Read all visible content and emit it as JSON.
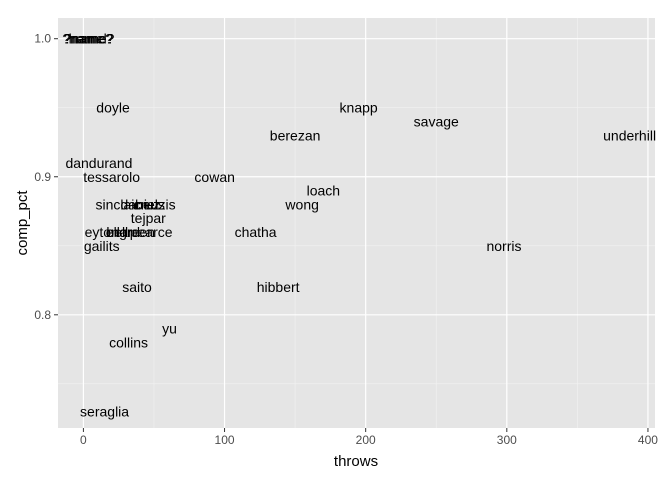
{
  "chart_data": {
    "type": "scatter",
    "title": "",
    "xlabel": "throws",
    "ylabel": "comp_pct",
    "xlim": [
      -18,
      405
    ],
    "ylim": [
      0.718,
      1.015
    ],
    "x_ticks": [
      0,
      100,
      200,
      300,
      400
    ],
    "y_ticks": [
      0.8,
      0.9,
      1.0
    ],
    "x_tick_labels": [
      "0",
      "100",
      "200",
      "300",
      "400"
    ],
    "y_tick_labels": [
      "0.8",
      "0.9",
      "1.0"
    ],
    "grid": true,
    "legend": "none",
    "colors": {
      "panel_background": "#e5e5e5",
      "grid_major": "#ffffff",
      "grid_minor": "#f2f2f2",
      "text": "#000000",
      "tick_text": "#4d4d4d"
    },
    "points": [
      {
        "label": "?name?",
        "x": 3,
        "y": 1.0
      },
      {
        "label": "?name?",
        "x": 4,
        "y": 1.0
      },
      {
        "label": "hamel",
        "x": 3,
        "y": 1.0
      },
      {
        "label": "?name?",
        "x": 4,
        "y": 1.0
      },
      {
        "label": "doyle",
        "x": 21,
        "y": 0.95
      },
      {
        "label": "knapp",
        "x": 195,
        "y": 0.95
      },
      {
        "label": "savage",
        "x": 250,
        "y": 0.94
      },
      {
        "label": "berezan",
        "x": 150,
        "y": 0.93
      },
      {
        "label": "underhill",
        "x": 387,
        "y": 0.93
      },
      {
        "label": "dandurand",
        "x": 11,
        "y": 0.91
      },
      {
        "label": "tessarolo",
        "x": 20,
        "y": 0.9
      },
      {
        "label": "cowan",
        "x": 93,
        "y": 0.9
      },
      {
        "label": "loach",
        "x": 170,
        "y": 0.89
      },
      {
        "label": "sinclair",
        "x": 24,
        "y": 0.88
      },
      {
        "label": "daniels",
        "x": 42,
        "y": 0.88
      },
      {
        "label": "cruz",
        "x": 45,
        "y": 0.88
      },
      {
        "label": "beuzis",
        "x": 51,
        "y": 0.88
      },
      {
        "label": "wong",
        "x": 155,
        "y": 0.88
      },
      {
        "label": "tejpar",
        "x": 46,
        "y": 0.87
      },
      {
        "label": "eyton",
        "x": 13,
        "y": 0.86
      },
      {
        "label": "bell",
        "x": 24,
        "y": 0.86
      },
      {
        "label": "ellard",
        "x": 28,
        "y": 0.86
      },
      {
        "label": "green",
        "x": 38,
        "y": 0.86
      },
      {
        "label": "pearce",
        "x": 48,
        "y": 0.86
      },
      {
        "label": "chatha",
        "x": 122,
        "y": 0.86
      },
      {
        "label": "gailits",
        "x": 13,
        "y": 0.85
      },
      {
        "label": "norris",
        "x": 298,
        "y": 0.85
      },
      {
        "label": "saito",
        "x": 38,
        "y": 0.82
      },
      {
        "label": "hibbert",
        "x": 138,
        "y": 0.82
      },
      {
        "label": "yu",
        "x": 61,
        "y": 0.79
      },
      {
        "label": "collins",
        "x": 32,
        "y": 0.78
      },
      {
        "label": "seraglia",
        "x": 15,
        "y": 0.73
      }
    ]
  }
}
